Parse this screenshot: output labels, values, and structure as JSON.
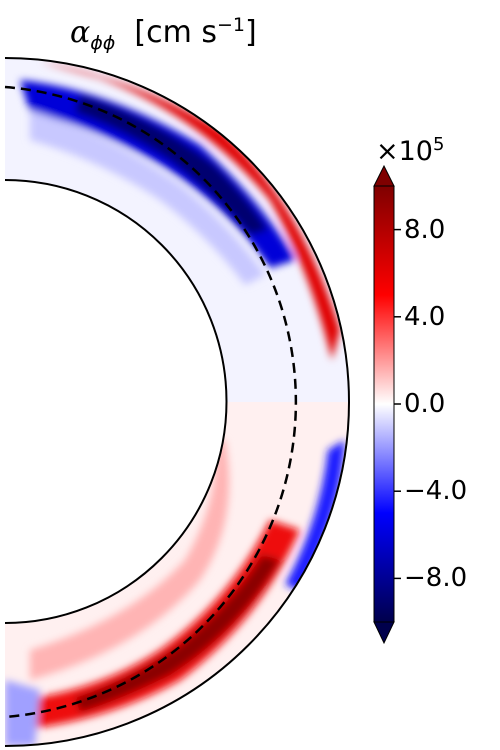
{
  "title": {
    "symbol": "α",
    "subscript": "ϕϕ",
    "units_text": "[cm s",
    "units_exponent": "−1",
    "units_close": "]"
  },
  "colorbar": {
    "multiplier_base": "×10",
    "multiplier_exponent": "5",
    "extend": "both",
    "colormap": "seismic",
    "colors": {
      "min": "#00004c",
      "blue": "#0000ff",
      "white": "#ffffff",
      "red": "#ff0000",
      "max": "#7f0000"
    },
    "ticks": [
      {
        "value": 8.0,
        "label": "8.0"
      },
      {
        "value": 4.0,
        "label": "4.0"
      },
      {
        "value": 0.0,
        "label": "0.0"
      },
      {
        "value": -4.0,
        "label": "−4.0"
      },
      {
        "value": -8.0,
        "label": "−8.0"
      }
    ],
    "range": [
      -10,
      10
    ]
  },
  "chart_data": {
    "type": "heatmap",
    "projection": "meridional half-annulus",
    "variable": "alpha_phiphi",
    "units": "cm s^-1",
    "value_scale": 100000,
    "vmin": -10,
    "vmax": 10,
    "inner_boundary_relative_radius": 0.64,
    "dashed_contour_relative_radius": 0.92,
    "grid": false,
    "structures": [
      {
        "region": "northern outer shell, high latitudes",
        "sign": "negative",
        "peak": -10
      },
      {
        "region": "northern outer shell, mid latitudes",
        "sign": "positive",
        "peak": 10
      },
      {
        "region": "equatorial bulk",
        "sign": "near zero",
        "peak": 0.5
      },
      {
        "region": "southern outer shell, low latitudes",
        "sign": "negative",
        "peak": -8
      },
      {
        "region": "southern shell, mid latitudes",
        "sign": "positive",
        "peak": 10
      }
    ]
  }
}
